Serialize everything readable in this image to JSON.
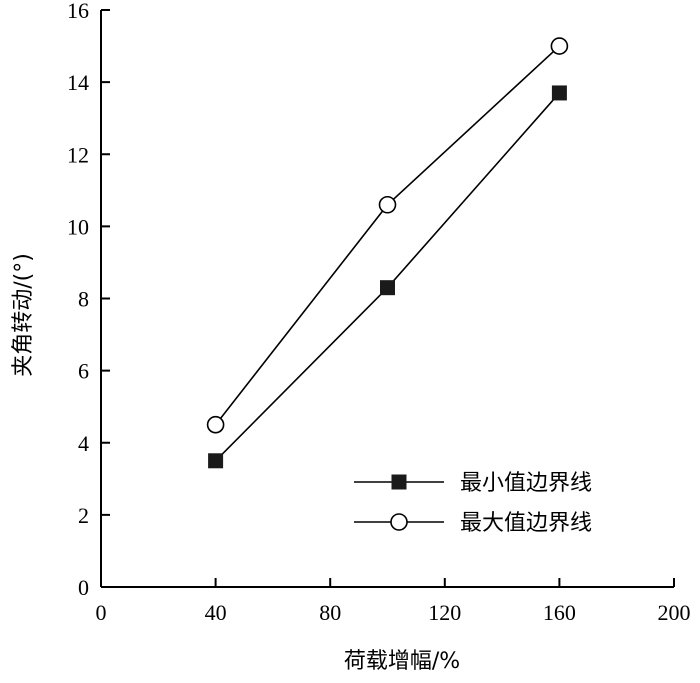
{
  "chart_data": {
    "type": "line",
    "title": "",
    "xlabel": "荷载增幅/%",
    "ylabel": "夹角转动/(°)",
    "xlim": [
      0,
      200
    ],
    "ylim": [
      0,
      16
    ],
    "x_ticks": [
      0,
      40,
      80,
      120,
      160,
      200
    ],
    "y_ticks": [
      0,
      2,
      4,
      6,
      8,
      10,
      12,
      14,
      16
    ],
    "x_tick_labels": [
      "0",
      "40",
      "80",
      "120",
      "160",
      "200"
    ],
    "y_tick_labels": [
      "0",
      "2",
      "4",
      "6",
      "8",
      "10",
      "12",
      "14",
      "16"
    ],
    "grid": false,
    "legend_position": "bottom-right",
    "x": [
      40,
      100,
      160
    ],
    "series": [
      {
        "name": "最小值边界线",
        "marker": "filled-square",
        "values": [
          3.5,
          8.3,
          13.7
        ]
      },
      {
        "name": "最大值边界线",
        "marker": "open-circle",
        "values": [
          4.5,
          10.6,
          15.0
        ]
      }
    ]
  }
}
